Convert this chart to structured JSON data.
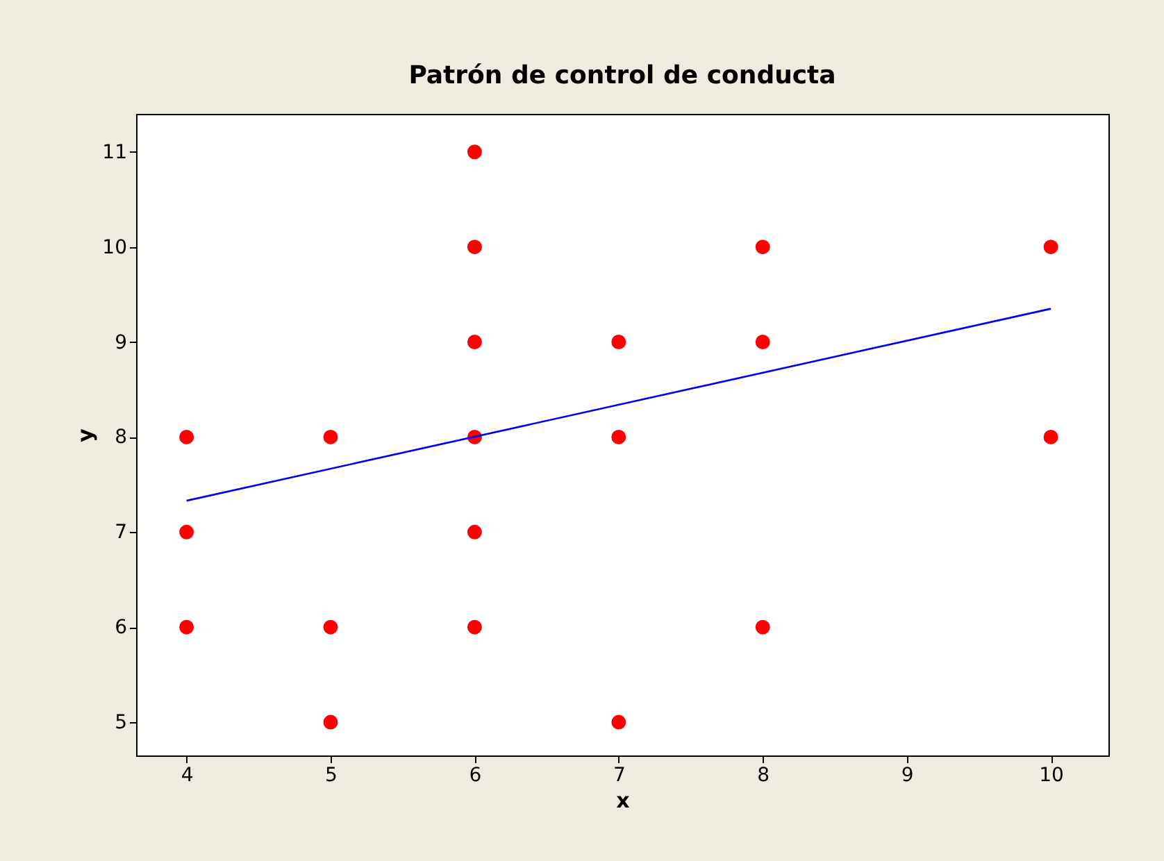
{
  "chart_data": {
    "type": "scatter",
    "title": "Patrón de control de conducta",
    "xlabel": "x",
    "ylabel": "y",
    "x": [
      4,
      4,
      4,
      5,
      5,
      5,
      6,
      6,
      6,
      6,
      6,
      6,
      7,
      7,
      7,
      8,
      8,
      8,
      10,
      10
    ],
    "series": [
      {
        "type": "scatter",
        "marker": "circle",
        "color": "#ff0000",
        "values": [
          8,
          7,
          6,
          8,
          6,
          5,
          11,
          10,
          9,
          8,
          7,
          6,
          9,
          8,
          5,
          10,
          9,
          6,
          10,
          8
        ]
      },
      {
        "type": "line",
        "color": "#0000ff",
        "x": [
          4,
          10
        ],
        "values": [
          7.33,
          9.35
        ]
      }
    ],
    "xlim": [
      3.65,
      10.4
    ],
    "ylim": [
      4.65,
      11.4
    ],
    "xticks": [
      4,
      5,
      6,
      7,
      8,
      9,
      10
    ],
    "yticks": [
      5,
      6,
      7,
      8,
      9,
      10,
      11
    ],
    "grid": false,
    "legend": false
  }
}
